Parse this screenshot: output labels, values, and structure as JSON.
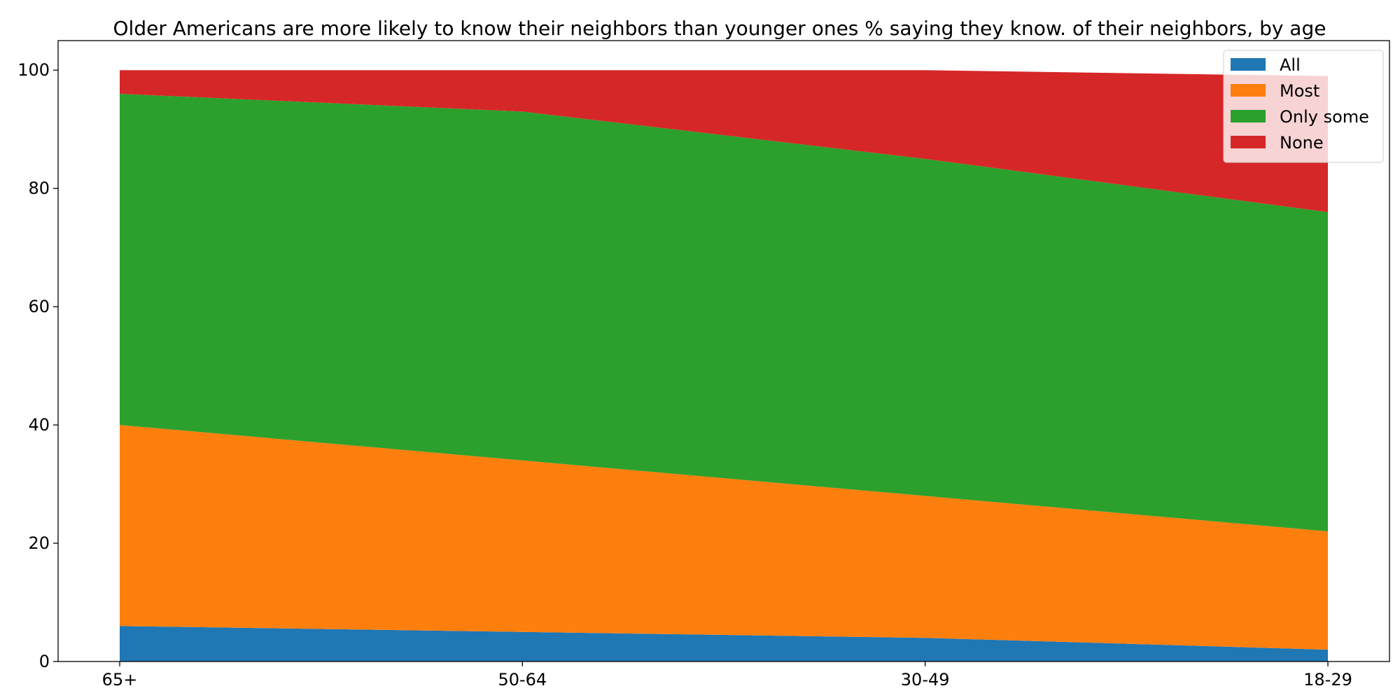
{
  "chart_data": {
    "type": "area",
    "stacked": true,
    "title": "Older Americans are more likely to know their neighbors than younger ones % saying they know. of their neighbors, by age",
    "xlabel": "",
    "ylabel": "",
    "categories": [
      "65+",
      "50-64",
      "30-49",
      "18-29"
    ],
    "ylim": [
      0,
      105
    ],
    "yticks": [
      0,
      20,
      40,
      60,
      80,
      100
    ],
    "grid": false,
    "legend": "top-right",
    "series": [
      {
        "name": "All",
        "color": "#1f77b4",
        "values": [
          6,
          5,
          4,
          2
        ]
      },
      {
        "name": "Most",
        "color": "#ff7f0e",
        "values": [
          34,
          29,
          24,
          20
        ]
      },
      {
        "name": "Only some",
        "color": "#2ca02c",
        "values": [
          56,
          59,
          57,
          54
        ]
      },
      {
        "name": "None",
        "color": "#d62728",
        "values": [
          4,
          7,
          15,
          23
        ]
      }
    ]
  }
}
